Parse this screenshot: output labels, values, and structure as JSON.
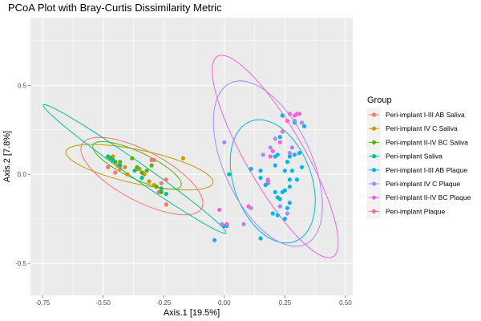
{
  "chart_data": {
    "type": "scatter",
    "title": "PCoA Plot with Bray-Curtis Dissimilarity Metric",
    "xlabel": "Axis.1   [19.5%]",
    "ylabel": "Axis.2   [7.8%]",
    "xlim": [
      -0.8,
      0.53
    ],
    "ylim": [
      -0.68,
      0.88
    ],
    "xticks": [
      -0.75,
      -0.5,
      -0.25,
      0.0,
      0.25,
      0.5
    ],
    "xtick_labels": [
      "-0.75",
      "-0.50",
      "-0.25",
      "0.00",
      "0.25",
      "0.50"
    ],
    "yticks": [
      -0.5,
      0.0,
      0.5
    ],
    "ytick_labels": [
      "-0.5",
      "0.0",
      "0.5"
    ],
    "grid": true,
    "legend": {
      "title": "Group",
      "position": "right"
    },
    "series": [
      {
        "name": "Peri-implant I-III AB Saliva",
        "color": "#F8766D",
        "points": [
          [
            -0.48,
            0.04
          ],
          [
            -0.45,
            0.01
          ],
          [
            -0.43,
            0.03
          ],
          [
            -0.36,
            0.03
          ],
          [
            -0.3,
            0.08
          ],
          [
            -0.29,
            0.08
          ],
          [
            -0.24,
            -0.03
          ],
          [
            -0.26,
            -0.05
          ],
          [
            -0.27,
            -0.1
          ],
          [
            -0.24,
            -0.17
          ]
        ],
        "ellipse": {
          "center": [
            -0.34,
            -0.01
          ],
          "rx": 0.28,
          "ry": 0.14,
          "angle": -28
        }
      },
      {
        "name": "Peri-implant IV C Saliva",
        "color": "#C49A00",
        "points": [
          [
            -0.46,
            0.1
          ],
          [
            -0.44,
            0.05
          ],
          [
            -0.41,
            0.04
          ],
          [
            -0.4,
            0.0
          ],
          [
            -0.35,
            0.03
          ],
          [
            -0.33,
            0.0
          ],
          [
            -0.31,
            -0.04
          ],
          [
            -0.29,
            -0.06
          ],
          [
            -0.17,
            0.09
          ]
        ],
        "ellipse": {
          "center": [
            -0.35,
            0.04
          ],
          "rx": 0.31,
          "ry": 0.095,
          "angle": -12
        }
      },
      {
        "name": "Peri-implant II-IV BC Saliva",
        "color": "#53B400",
        "points": [
          [
            -0.47,
            0.09
          ],
          [
            -0.45,
            0.07
          ],
          [
            -0.43,
            0.07
          ],
          [
            -0.38,
            0.09
          ],
          [
            -0.36,
            0.04
          ],
          [
            -0.34,
            0.01
          ],
          [
            -0.32,
            0.02
          ],
          [
            -0.3,
            0.05
          ],
          [
            -0.28,
            -0.07
          ],
          [
            -0.26,
            -0.1
          ]
        ],
        "ellipse": {
          "center": [
            -0.36,
            0.05
          ],
          "rx": 0.2,
          "ry": 0.075,
          "angle": -25
        }
      },
      {
        "name": "Peri-implant Saliva",
        "color": "#00C094",
        "points": [
          [
            -0.48,
            0.1
          ],
          [
            -0.46,
            0.08
          ],
          [
            -0.43,
            0.05
          ],
          [
            -0.37,
            0.02
          ],
          [
            -0.34,
            -0.02
          ],
          [
            -0.26,
            -0.08
          ],
          [
            -0.24,
            -0.11
          ],
          [
            0.01,
            -0.29
          ],
          [
            0.02,
            0.0
          ]
        ],
        "ellipse": {
          "center": [
            -0.37,
            0.03
          ],
          "rx": 0.46,
          "ry": 0.045,
          "angle": -35
        }
      },
      {
        "name": "Peri-implant I-III AB Plaque",
        "color": "#00B6EB",
        "points": [
          [
            0.11,
            0.03
          ],
          [
            0.15,
            0.02
          ],
          [
            0.15,
            -0.02
          ],
          [
            0.17,
            -0.06
          ],
          [
            0.18,
            -0.05
          ],
          [
            0.21,
            -0.1
          ],
          [
            0.22,
            -0.13
          ],
          [
            0.23,
            -0.14
          ],
          [
            0.24,
            -0.1
          ],
          [
            0.25,
            -0.09
          ],
          [
            0.27,
            -0.07
          ],
          [
            0.27,
            -0.03
          ],
          [
            0.25,
            0.02
          ],
          [
            0.28,
            0.02
          ],
          [
            0.26,
            0.07
          ],
          [
            0.27,
            0.1
          ],
          [
            0.29,
            0.11
          ],
          [
            0.31,
            0.12
          ],
          [
            0.32,
            0.04
          ],
          [
            0.3,
            -0.03
          ],
          [
            0.21,
            0.1
          ],
          [
            0.22,
            0.11
          ],
          [
            0.21,
            0.05
          ],
          [
            0.23,
            0.21
          ],
          [
            0.33,
            0.27
          ],
          [
            0.24,
            0.33
          ],
          [
            0.29,
            0.29
          ],
          [
            0.2,
            -0.22
          ],
          [
            0.22,
            -0.23
          ],
          [
            0.25,
            -0.25
          ],
          [
            0.26,
            -0.19
          ],
          [
            0.27,
            -0.16
          ],
          [
            0.15,
            -0.36
          ],
          [
            -0.04,
            -0.37
          ],
          [
            0.01,
            -0.28
          ],
          [
            0.0,
            -0.29
          ]
        ],
        "ellipse": {
          "center": [
            0.2,
            -0.04
          ],
          "rx": 0.16,
          "ry": 0.36,
          "angle": 20
        }
      },
      {
        "name": "Peri-implant IV C Plaque",
        "color": "#A58AFF",
        "points": [
          [
            0.0,
            0.18
          ],
          [
            0.16,
            0.11
          ],
          [
            0.18,
            -0.03
          ],
          [
            0.28,
            0.15
          ],
          [
            0.19,
            0.15
          ],
          [
            0.21,
            0.2
          ],
          [
            0.29,
            0.3
          ],
          [
            0.32,
            0.29
          ],
          [
            0.27,
            0.12
          ],
          [
            0.23,
            -0.18
          ],
          [
            -0.01,
            -0.28
          ],
          [
            0.08,
            -0.28
          ],
          [
            0.11,
            -0.19
          ],
          [
            0.26,
            -0.22
          ]
        ],
        "ellipse": {
          "center": [
            0.18,
            0.06
          ],
          "rx": 0.18,
          "ry": 0.5,
          "angle": 25
        }
      },
      {
        "name": "Peri-implant II-IV BC Plaque",
        "color": "#FB61D7",
        "points": [
          [
            0.29,
            0.33
          ],
          [
            0.3,
            0.34
          ],
          [
            0.31,
            0.34
          ],
          [
            0.27,
            0.34
          ],
          [
            0.24,
            0.24
          ],
          [
            0.26,
            0.3
          ],
          [
            -0.02,
            -0.2
          ],
          [
            0.01,
            -0.28
          ],
          [
            0.1,
            -0.18
          ],
          [
            0.18,
            -0.04
          ],
          [
            0.19,
            0.1
          ],
          [
            0.2,
            0.13
          ],
          [
            0.23,
            0.18
          ]
        ],
        "ellipse": {
          "center": [
            0.21,
            0.1
          ],
          "rx": 0.12,
          "ry": 0.65,
          "angle": 30
        }
      },
      {
        "name": "Peri-implant Plaque",
        "color": "#FF67A4",
        "points": [],
        "ellipse": null
      }
    ]
  }
}
